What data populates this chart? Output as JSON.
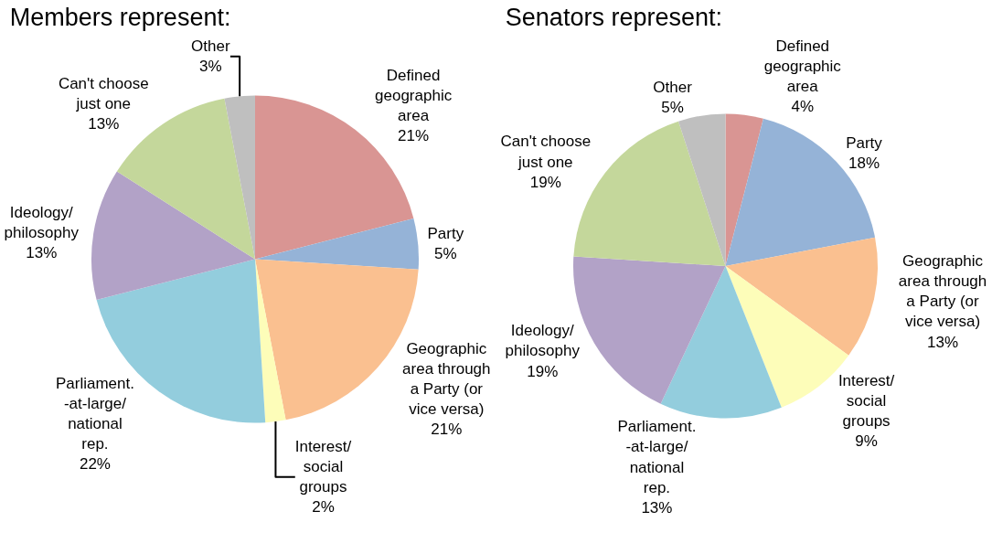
{
  "chart_data": [
    {
      "type": "pie",
      "title": "Members represent:",
      "categories": [
        "Defined geographic area",
        "Party",
        "Geographic area through a Party (or vice versa)",
        "Interest/ social groups",
        "Parliament. -at-large/ national rep.",
        "Ideology/ philosophy",
        "Can't choose just one",
        "Other"
      ],
      "values": [
        21,
        5,
        21,
        2,
        22,
        13,
        13,
        3
      ],
      "value_labels": [
        "21%",
        "5%",
        "21%",
        "2%",
        "22%",
        "13%",
        "13%",
        "3%"
      ],
      "colors": [
        "#d99593",
        "#95b3d7",
        "#fac090",
        "#fdfdb9",
        "#93cddd",
        "#b2a2c7",
        "#c4d79b",
        "#bfbfbf"
      ],
      "legend": false
    },
    {
      "type": "pie",
      "title": "Senators represent:",
      "categories": [
        "Defined geographic area",
        "Party",
        "Geographic area through a Party (or vice versa)",
        "Interest/ social groups",
        "Parliament. -at-large/ national rep.",
        "Ideology/ philosophy",
        "Can't choose just one",
        "Other"
      ],
      "values": [
        4,
        18,
        13,
        9,
        13,
        19,
        19,
        5
      ],
      "value_labels": [
        "4%",
        "18%",
        "13%",
        "9%",
        "13%",
        "19%",
        "19%",
        "5%"
      ],
      "colors": [
        "#d99593",
        "#95b3d7",
        "#fac090",
        "#fdfdb9",
        "#93cddd",
        "#b2a2c7",
        "#c4d79b",
        "#bfbfbf"
      ],
      "legend": false
    }
  ]
}
